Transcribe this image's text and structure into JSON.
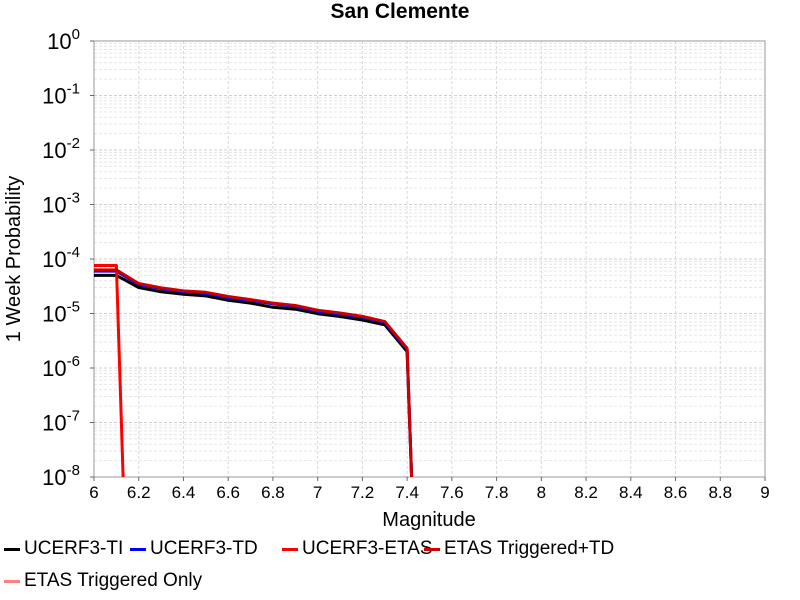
{
  "chart_data": {
    "type": "line",
    "title": "San Clemente",
    "xlabel": "Magnitude",
    "ylabel": "1 Week Probability",
    "xlim": [
      6,
      9
    ],
    "ylim": [
      1e-08,
      1
    ],
    "yscale": "log",
    "grid": true,
    "x_ticks": [
      "6",
      "6.2",
      "6.4",
      "6.6",
      "6.8",
      "7",
      "7.2",
      "7.4",
      "7.6",
      "7.8",
      "8",
      "8.2",
      "8.4",
      "8.6",
      "8.8",
      "9"
    ],
    "y_ticks": [
      {
        "base": "10",
        "exp": "0"
      },
      {
        "base": "10",
        "exp": "-1"
      },
      {
        "base": "10",
        "exp": "-2"
      },
      {
        "base": "10",
        "exp": "-3"
      },
      {
        "base": "10",
        "exp": "-4"
      },
      {
        "base": "10",
        "exp": "-5"
      },
      {
        "base": "10",
        "exp": "-6"
      },
      {
        "base": "10",
        "exp": "-7"
      },
      {
        "base": "10",
        "exp": "-8"
      }
    ],
    "legend_position": "bottom",
    "series": [
      {
        "name": "UCERF3-TI",
        "color": "#000000",
        "x": [
          6.0,
          6.1,
          6.2,
          6.3,
          6.4,
          6.5,
          6.6,
          6.7,
          6.8,
          6.9,
          7.0,
          7.1,
          7.2,
          7.3,
          7.4,
          7.42
        ],
        "y": [
          5e-05,
          5e-05,
          3e-05,
          2.5e-05,
          2.25e-05,
          2.1e-05,
          1.75e-05,
          1.55e-05,
          1.3e-05,
          1.2e-05,
          9.9e-06,
          8.8e-06,
          7.6e-06,
          6.2e-06,
          2e-06,
          1e-08
        ]
      },
      {
        "name": "UCERF3-TD",
        "color": "#0000ff",
        "x": [
          6.0,
          6.1,
          6.2,
          6.3,
          6.4,
          6.5,
          6.6,
          6.7,
          6.8,
          6.9,
          7.0,
          7.1,
          7.2,
          7.3,
          7.4,
          7.42
        ],
        "y": [
          6e-05,
          6e-05,
          3.4e-05,
          2.85e-05,
          2.5e-05,
          2.35e-05,
          1.95e-05,
          1.75e-05,
          1.5e-05,
          1.35e-05,
          1.1e-05,
          9.8e-06,
          8.6e-06,
          6.9e-06,
          2.2e-06,
          1e-08
        ]
      },
      {
        "name": "UCERF3-ETAS",
        "color": "#ff0000",
        "x": [
          6.0,
          6.1,
          6.13
        ],
        "y": [
          7.6e-05,
          7.6e-05,
          1e-08
        ]
      },
      {
        "name": "ETAS Triggered+TD",
        "color": "#cc0000",
        "x": [
          6.0,
          6.1,
          6.2,
          6.3,
          6.4,
          6.5,
          6.6,
          6.7,
          6.8,
          6.9,
          7.0,
          7.1,
          7.2,
          7.3,
          7.4,
          7.42
        ],
        "y": [
          6.3e-05,
          6.3e-05,
          3.55e-05,
          2.95e-05,
          2.6e-05,
          2.45e-05,
          2.05e-05,
          1.8e-05,
          1.55e-05,
          1.4e-05,
          1.15e-05,
          1.02e-05,
          8.9e-06,
          7.1e-06,
          2.3e-06,
          1e-08
        ]
      },
      {
        "name": "ETAS Triggered Only",
        "color": "#ff8080",
        "x": [],
        "y": []
      }
    ]
  }
}
